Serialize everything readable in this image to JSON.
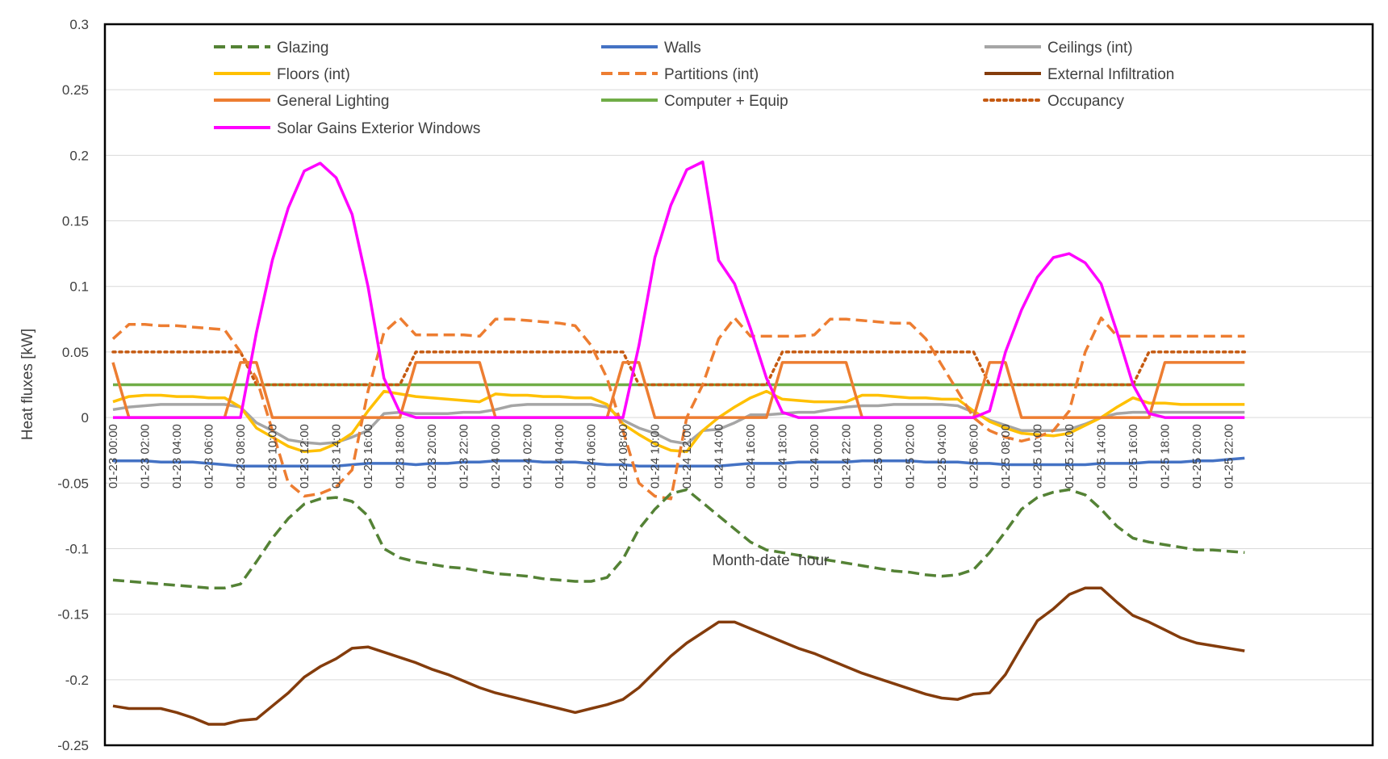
{
  "chart_data": {
    "type": "line",
    "title": "",
    "xlabel": "Month-date  hour",
    "ylabel": "Heat fluxes [kW]",
    "ylim": [
      -0.25,
      0.3
    ],
    "ytick_step": 0.05,
    "yticks": [
      "0.3",
      "0.25",
      "0.2",
      "0.15",
      "0.1",
      "0.05",
      "0",
      "-0.05",
      "-0.1",
      "-0.15",
      "-0.2",
      "-0.25"
    ],
    "grid": true,
    "legend_position": "top",
    "x_hours": [
      0,
      1,
      2,
      3,
      4,
      5,
      6,
      7,
      8,
      9,
      10,
      11,
      12,
      13,
      14,
      15,
      16,
      17,
      18,
      19,
      20,
      21,
      22,
      23,
      24,
      25,
      26,
      27,
      28,
      29,
      30,
      31,
      32,
      33,
      34,
      35,
      36,
      37,
      38,
      39,
      40,
      41,
      42,
      43,
      44,
      45,
      46,
      47,
      48,
      49,
      50,
      51,
      52,
      53,
      54,
      55,
      56,
      57,
      58,
      59,
      60,
      61,
      62,
      63,
      64,
      65,
      66,
      67,
      68,
      69,
      70,
      71
    ],
    "x_tick_labels": [
      "01-23 00:00",
      "01-23 02:00",
      "01-23 04:00",
      "01-23 06:00",
      "01-23 08:00",
      "01-23 10:00",
      "01-23 12:00",
      "01-23 14:00",
      "01-23 16:00",
      "01-23 18:00",
      "01-23 20:00",
      "01-23 22:00",
      "01-24 00:00",
      "01-24 02:00",
      "01-24 04:00",
      "01-24 06:00",
      "01-24 08:00",
      "01-24 10:00",
      "01-24 12:00",
      "01-24 14:00",
      "01-24 16:00",
      "01-24 18:00",
      "01-24 20:00",
      "01-24 22:00",
      "01-25 00:00",
      "01-25 02:00",
      "01-25 04:00",
      "01-25 06:00",
      "01-25 08:00",
      "01-25 10:00",
      "01-25 12:00",
      "01-25 14:00",
      "01-25 16:00",
      "01-25 18:00",
      "01-25 20:00",
      "01-25 22:00"
    ],
    "series": [
      {
        "name": "Glazing",
        "color": "#548235",
        "style": "dashed",
        "values": [
          -0.124,
          -0.125,
          -0.126,
          -0.127,
          -0.128,
          -0.129,
          -0.13,
          -0.13,
          -0.127,
          -0.11,
          -0.092,
          -0.077,
          -0.066,
          -0.062,
          -0.061,
          -0.064,
          -0.075,
          -0.1,
          -0.107,
          -0.11,
          -0.112,
          -0.114,
          -0.115,
          -0.117,
          -0.119,
          -0.12,
          -0.121,
          -0.123,
          -0.124,
          -0.125,
          -0.125,
          -0.122,
          -0.108,
          -0.085,
          -0.07,
          -0.058,
          -0.055,
          -0.065,
          -0.075,
          -0.085,
          -0.095,
          -0.101,
          -0.103,
          -0.105,
          -0.107,
          -0.109,
          -0.111,
          -0.113,
          -0.115,
          -0.117,
          -0.118,
          -0.12,
          -0.121,
          -0.12,
          -0.116,
          -0.103,
          -0.087,
          -0.07,
          -0.061,
          -0.057,
          -0.055,
          -0.059,
          -0.07,
          -0.083,
          -0.092,
          -0.095,
          -0.097,
          -0.099,
          -0.101,
          -0.101,
          -0.102,
          -0.103
        ]
      },
      {
        "name": "Walls",
        "color": "#4472C4",
        "style": "solid",
        "values": [
          -0.033,
          -0.033,
          -0.033,
          -0.034,
          -0.034,
          -0.034,
          -0.035,
          -0.036,
          -0.037,
          -0.037,
          -0.037,
          -0.037,
          -0.037,
          -0.037,
          -0.037,
          -0.036,
          -0.035,
          -0.035,
          -0.035,
          -0.036,
          -0.035,
          -0.035,
          -0.034,
          -0.034,
          -0.033,
          -0.033,
          -0.033,
          -0.034,
          -0.034,
          -0.034,
          -0.035,
          -0.036,
          -0.036,
          -0.037,
          -0.037,
          -0.037,
          -0.037,
          -0.037,
          -0.037,
          -0.036,
          -0.035,
          -0.035,
          -0.035,
          -0.034,
          -0.034,
          -0.034,
          -0.034,
          -0.033,
          -0.033,
          -0.033,
          -0.033,
          -0.034,
          -0.034,
          -0.034,
          -0.035,
          -0.035,
          -0.036,
          -0.036,
          -0.036,
          -0.036,
          -0.036,
          -0.036,
          -0.035,
          -0.035,
          -0.035,
          -0.034,
          -0.034,
          -0.034,
          -0.033,
          -0.033,
          -0.032,
          -0.031
        ]
      },
      {
        "name": "Ceilings (int)",
        "color": "#A5A5A5",
        "style": "solid",
        "values": [
          0.006,
          0.008,
          0.009,
          0.01,
          0.01,
          0.01,
          0.01,
          0.01,
          0.008,
          -0.004,
          -0.01,
          -0.017,
          -0.019,
          -0.02,
          -0.019,
          -0.015,
          -0.01,
          0.003,
          0.004,
          0.003,
          0.003,
          0.003,
          0.004,
          0.004,
          0.006,
          0.009,
          0.01,
          0.01,
          0.01,
          0.01,
          0.01,
          0.008,
          -0.002,
          -0.008,
          -0.012,
          -0.018,
          -0.02,
          -0.01,
          -0.009,
          -0.004,
          0.002,
          0.002,
          0.003,
          0.004,
          0.004,
          0.006,
          0.008,
          0.009,
          0.009,
          0.01,
          0.01,
          0.01,
          0.01,
          0.009,
          0.004,
          -0.002,
          -0.006,
          -0.01,
          -0.01,
          -0.01,
          -0.009,
          -0.005,
          0.0,
          0.003,
          0.004,
          0.004,
          0.004,
          0.004,
          0.004,
          0.004,
          0.004,
          0.004
        ]
      },
      {
        "name": "Floors (int)",
        "color": "#FFC000",
        "style": "solid",
        "values": [
          0.012,
          0.016,
          0.017,
          0.017,
          0.016,
          0.016,
          0.015,
          0.015,
          0.008,
          -0.008,
          -0.015,
          -0.022,
          -0.026,
          -0.025,
          -0.02,
          -0.012,
          0.005,
          0.02,
          0.018,
          0.016,
          0.015,
          0.014,
          0.013,
          0.012,
          0.018,
          0.017,
          0.017,
          0.016,
          0.016,
          0.015,
          0.015,
          0.01,
          -0.005,
          -0.013,
          -0.02,
          -0.025,
          -0.026,
          -0.01,
          0.0,
          0.008,
          0.015,
          0.02,
          0.014,
          0.013,
          0.012,
          0.012,
          0.012,
          0.017,
          0.017,
          0.016,
          0.015,
          0.015,
          0.014,
          0.014,
          0.005,
          -0.003,
          -0.008,
          -0.012,
          -0.013,
          -0.014,
          -0.012,
          -0.006,
          0.0,
          0.008,
          0.015,
          0.011,
          0.011,
          0.01,
          0.01,
          0.01,
          0.01,
          0.01
        ]
      },
      {
        "name": "Partitions (int)",
        "color": "#ED7D31",
        "style": "dashed",
        "values": [
          0.06,
          0.071,
          0.071,
          0.07,
          0.07,
          0.069,
          0.068,
          0.067,
          0.05,
          0.03,
          -0.01,
          -0.05,
          -0.06,
          -0.058,
          -0.053,
          -0.04,
          0.02,
          0.065,
          0.076,
          0.063,
          0.063,
          0.063,
          0.063,
          0.062,
          0.075,
          0.075,
          0.074,
          0.073,
          0.072,
          0.07,
          0.055,
          0.03,
          -0.01,
          -0.05,
          -0.06,
          -0.062,
          0.0,
          0.025,
          0.06,
          0.076,
          0.062,
          0.062,
          0.062,
          0.062,
          0.063,
          0.075,
          0.075,
          0.074,
          0.073,
          0.072,
          0.072,
          0.06,
          0.04,
          0.02,
          0.0,
          -0.01,
          -0.015,
          -0.018,
          -0.015,
          -0.01,
          0.005,
          0.05,
          0.076,
          0.062,
          0.062,
          0.062,
          0.062,
          0.062,
          0.062,
          0.062,
          0.062,
          0.062
        ]
      },
      {
        "name": "External Infiltration",
        "color": "#843C0C",
        "style": "solid",
        "values": [
          -0.22,
          -0.222,
          -0.222,
          -0.222,
          -0.225,
          -0.229,
          -0.234,
          -0.234,
          -0.231,
          -0.23,
          -0.22,
          -0.21,
          -0.198,
          -0.19,
          -0.184,
          -0.176,
          -0.175,
          -0.179,
          -0.183,
          -0.187,
          -0.192,
          -0.196,
          -0.201,
          -0.206,
          -0.21,
          -0.213,
          -0.216,
          -0.219,
          -0.222,
          -0.225,
          -0.222,
          -0.219,
          -0.215,
          -0.206,
          -0.194,
          -0.182,
          -0.172,
          -0.164,
          -0.156,
          -0.156,
          -0.161,
          -0.166,
          -0.171,
          -0.176,
          -0.18,
          -0.185,
          -0.19,
          -0.195,
          -0.199,
          -0.203,
          -0.207,
          -0.211,
          -0.214,
          -0.215,
          -0.211,
          -0.21,
          -0.196,
          -0.175,
          -0.155,
          -0.146,
          -0.135,
          -0.13,
          -0.13,
          -0.141,
          -0.151,
          -0.156,
          -0.162,
          -0.168,
          -0.172,
          -0.174,
          -0.176,
          -0.178
        ]
      },
      {
        "name": "General Lighting",
        "color": "#ED7D31",
        "style": "solid",
        "values": [
          0.042,
          0.0,
          0.0,
          0.0,
          0.0,
          0.0,
          0.0,
          0.0,
          0.042,
          0.042,
          0.0,
          0.0,
          0.0,
          0.0,
          0.0,
          0.0,
          0.0,
          0.0,
          0.0,
          0.042,
          0.042,
          0.042,
          0.042,
          0.042,
          0.0,
          0.0,
          0.0,
          0.0,
          0.0,
          0.0,
          0.0,
          0.0,
          0.042,
          0.042,
          0.0,
          0.0,
          0.0,
          0.0,
          0.0,
          0.0,
          0.0,
          0.0,
          0.042,
          0.042,
          0.042,
          0.042,
          0.042,
          0.0,
          0.0,
          0.0,
          0.0,
          0.0,
          0.0,
          0.0,
          0.0,
          0.042,
          0.042,
          0.0,
          0.0,
          0.0,
          0.0,
          0.0,
          0.0,
          0.0,
          0.0,
          0.0,
          0.042,
          0.042,
          0.042,
          0.042,
          0.042,
          0.042
        ]
      },
      {
        "name": "Computer + Equip",
        "color": "#70AD47",
        "style": "solid",
        "values": [
          0.025,
          0.025,
          0.025,
          0.025,
          0.025,
          0.025,
          0.025,
          0.025,
          0.025,
          0.025,
          0.025,
          0.025,
          0.025,
          0.025,
          0.025,
          0.025,
          0.025,
          0.025,
          0.025,
          0.025,
          0.025,
          0.025,
          0.025,
          0.025,
          0.025,
          0.025,
          0.025,
          0.025,
          0.025,
          0.025,
          0.025,
          0.025,
          0.025,
          0.025,
          0.025,
          0.025,
          0.025,
          0.025,
          0.025,
          0.025,
          0.025,
          0.025,
          0.025,
          0.025,
          0.025,
          0.025,
          0.025,
          0.025,
          0.025,
          0.025,
          0.025,
          0.025,
          0.025,
          0.025,
          0.025,
          0.025,
          0.025,
          0.025,
          0.025,
          0.025,
          0.025,
          0.025,
          0.025,
          0.025,
          0.025,
          0.025,
          0.025,
          0.025,
          0.025,
          0.025,
          0.025,
          0.025
        ]
      },
      {
        "name": "Occupancy",
        "color": "#C55A11",
        "style": "dotted",
        "values": [
          0.05,
          0.05,
          0.05,
          0.05,
          0.05,
          0.05,
          0.05,
          0.05,
          0.05,
          0.025,
          0.025,
          0.025,
          0.025,
          0.025,
          0.025,
          0.025,
          0.025,
          0.025,
          0.025,
          0.05,
          0.05,
          0.05,
          0.05,
          0.05,
          0.05,
          0.05,
          0.05,
          0.05,
          0.05,
          0.05,
          0.05,
          0.05,
          0.05,
          0.025,
          0.025,
          0.025,
          0.025,
          0.025,
          0.025,
          0.025,
          0.025,
          0.025,
          0.05,
          0.05,
          0.05,
          0.05,
          0.05,
          0.05,
          0.05,
          0.05,
          0.05,
          0.05,
          0.05,
          0.05,
          0.05,
          0.025,
          0.025,
          0.025,
          0.025,
          0.025,
          0.025,
          0.025,
          0.025,
          0.025,
          0.025,
          0.05,
          0.05,
          0.05,
          0.05,
          0.05,
          0.05,
          0.05
        ]
      },
      {
        "name": "Solar Gains Exterior Windows",
        "color": "#FF00FF",
        "style": "solid",
        "values": [
          0.0,
          0.0,
          0.0,
          0.0,
          0.0,
          0.0,
          0.0,
          0.0,
          0.0,
          0.065,
          0.12,
          0.16,
          0.188,
          0.194,
          0.183,
          0.155,
          0.1,
          0.03,
          0.004,
          0.0,
          0.0,
          0.0,
          0.0,
          0.0,
          0.0,
          0.0,
          0.0,
          0.0,
          0.0,
          0.0,
          0.0,
          0.0,
          0.0,
          0.055,
          0.122,
          0.162,
          0.189,
          0.195,
          0.12,
          0.102,
          0.068,
          0.03,
          0.004,
          0.0,
          0.0,
          0.0,
          0.0,
          0.0,
          0.0,
          0.0,
          0.0,
          0.0,
          0.0,
          0.0,
          0.0,
          0.005,
          0.05,
          0.082,
          0.107,
          0.122,
          0.125,
          0.118,
          0.102,
          0.065,
          0.025,
          0.003,
          0.0,
          0.0,
          0.0,
          0.0,
          0.0,
          0.0
        ]
      }
    ]
  }
}
